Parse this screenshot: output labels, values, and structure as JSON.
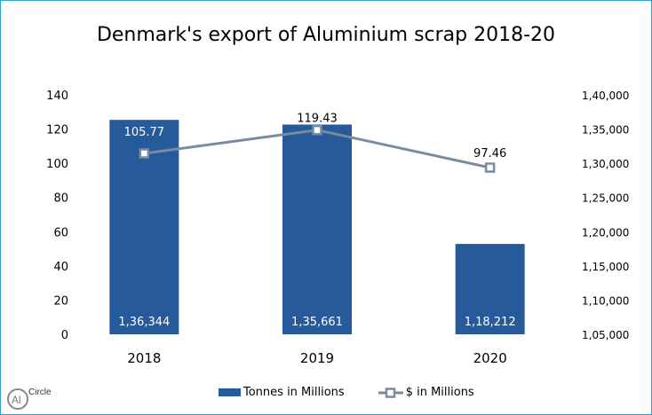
{
  "chart_data": {
    "type": "bar+line",
    "title": "Denmark's export of Aluminium scrap 2018-20",
    "categories": [
      "2018",
      "2019",
      "2020"
    ],
    "series": [
      {
        "name": "Tonnes in Millions",
        "type": "bar",
        "axis": "right",
        "values": [
          136344,
          135661,
          118212
        ],
        "labels": [
          "1,36,344",
          "1,35,661",
          "1,18,212"
        ],
        "color": "#275a9b"
      },
      {
        "name": "$ in Millions",
        "type": "line",
        "axis": "left",
        "values": [
          105.77,
          119.43,
          97.46
        ],
        "labels": [
          "105.77",
          "119.43",
          "97.46"
        ],
        "color": "#7a8aa0"
      }
    ],
    "left_axis": {
      "ylim": [
        0,
        140
      ],
      "ticks": [
        "0",
        "20",
        "40",
        "60",
        "80",
        "100",
        "120",
        "140"
      ]
    },
    "right_axis": {
      "ylim": [
        105000,
        140000
      ],
      "ticks": [
        "1,05,000",
        "1,10,000",
        "1,15,000",
        "1,20,000",
        "1,25,000",
        "1,30,000",
        "1,35,000",
        "1,40,000"
      ]
    },
    "grid": false,
    "legend": "bottom"
  },
  "logo": {
    "text": "AlCircle"
  }
}
